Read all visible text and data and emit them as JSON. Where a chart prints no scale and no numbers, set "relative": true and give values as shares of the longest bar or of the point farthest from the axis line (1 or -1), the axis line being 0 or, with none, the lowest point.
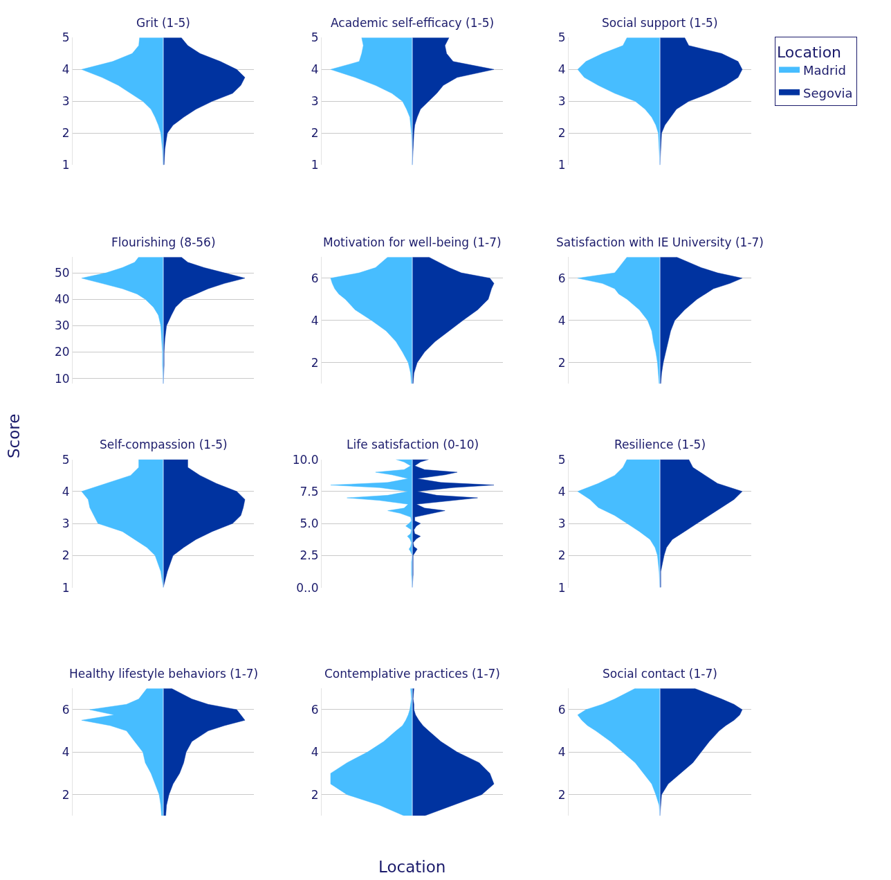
{
  "chart_data": [
    {
      "type": "area",
      "orientation": "horizontal",
      "relative": true,
      "title": "Grit (1-5)",
      "x": [
        1,
        1.5,
        2,
        2.25,
        2.5,
        2.75,
        3,
        3.25,
        3.5,
        3.75,
        4,
        4.25,
        4.5,
        4.75,
        5
      ],
      "ylim": [
        1,
        5
      ],
      "yticks": [
        1,
        2,
        3,
        4,
        5
      ],
      "grid": "y",
      "ref_lines": [
        {
          "axis": "x",
          "value": 0,
          "color": "#cfe3ff"
        }
      ],
      "legend": "right",
      "legend_title": "Location",
      "series": [
        {
          "name": "Madrid",
          "color": "#47bdff",
          "values": [
            0,
            -0.01,
            -0.03,
            -0.06,
            -0.1,
            -0.15,
            -0.25,
            -0.4,
            -0.55,
            -0.75,
            -1.0,
            -0.62,
            -0.38,
            -0.3,
            -0.29
          ]
        },
        {
          "name": "Segovia",
          "color": "#0033a0",
          "values": [
            0.01,
            0.02,
            0.05,
            0.12,
            0.25,
            0.4,
            0.6,
            0.85,
            0.95,
            1.0,
            0.9,
            0.7,
            0.45,
            0.3,
            0.22
          ]
        }
      ]
    },
    {
      "type": "area",
      "orientation": "horizontal",
      "relative": true,
      "title": "Academic self-efficacy (1-5)",
      "ref_lines": [
        {
          "axis": "x",
          "value": 0,
          "color": "#cfe3ff"
        }
      ],
      "x": [
        1,
        1.5,
        2,
        2.25,
        2.5,
        2.75,
        3,
        3.25,
        3.5,
        3.75,
        4,
        4.25,
        4.5,
        4.75,
        5
      ],
      "ylim": [
        1,
        5
      ],
      "yticks": [
        1,
        2,
        3,
        4,
        5
      ],
      "grid": "y",
      "series": [
        {
          "name": "Madrid",
          "color": "#47bdff",
          "values": [
            0,
            0,
            -0.01,
            -0.02,
            -0.03,
            -0.07,
            -0.12,
            -0.25,
            -0.45,
            -0.7,
            -1.0,
            -0.65,
            -0.62,
            -0.6,
            -0.62
          ]
        },
        {
          "name": "Segovia",
          "color": "#0033a0",
          "values": [
            0,
            0.01,
            0.02,
            0.03,
            0.06,
            0.1,
            0.2,
            0.3,
            0.38,
            0.55,
            1.0,
            0.5,
            0.42,
            0.4,
            0.45
          ]
        }
      ]
    },
    {
      "type": "area",
      "orientation": "horizontal",
      "relative": true,
      "title": "Social support (1-5)",
      "ref_lines": [
        {
          "axis": "x",
          "value": 0,
          "color": "#cfe3ff"
        }
      ],
      "x": [
        1,
        1.5,
        2,
        2.25,
        2.5,
        2.75,
        3,
        3.25,
        3.5,
        3.75,
        4,
        4.25,
        4.5,
        4.75,
        5
      ],
      "ylim": [
        1,
        5
      ],
      "yticks": [
        1,
        2,
        3,
        4,
        5
      ],
      "grid": "y",
      "series": [
        {
          "name": "Madrid",
          "color": "#47bdff",
          "values": [
            0,
            -0.01,
            -0.02,
            -0.05,
            -0.1,
            -0.18,
            -0.3,
            -0.55,
            -0.75,
            -0.92,
            -1.0,
            -0.9,
            -0.7,
            -0.45,
            -0.4
          ]
        },
        {
          "name": "Segovia",
          "color": "#0033a0",
          "values": [
            0,
            0.01,
            0.02,
            0.06,
            0.13,
            0.2,
            0.35,
            0.6,
            0.8,
            0.95,
            1.0,
            0.95,
            0.75,
            0.35,
            0.3
          ]
        }
      ]
    },
    {
      "type": "area",
      "orientation": "horizontal",
      "relative": true,
      "title": "Flourishing (8-56)",
      "ref_lines": [
        {
          "axis": "x",
          "value": 0,
          "color": "#cfe3ff"
        }
      ],
      "x": [
        8,
        15,
        20,
        25,
        30,
        34,
        37,
        40,
        42,
        44,
        46,
        48,
        50,
        52,
        54,
        56
      ],
      "ylim": [
        8,
        56
      ],
      "yticks": [
        10,
        20,
        30,
        40,
        50
      ],
      "grid": "y",
      "series": [
        {
          "name": "Madrid",
          "color": "#47bdff",
          "values": [
            0,
            -0.01,
            -0.01,
            -0.02,
            -0.03,
            -0.06,
            -0.12,
            -0.22,
            -0.32,
            -0.5,
            -0.75,
            -1.0,
            -0.7,
            -0.5,
            -0.35,
            -0.3
          ]
        },
        {
          "name": "Segovia",
          "color": "#0033a0",
          "values": [
            0,
            0.01,
            0.01,
            0.02,
            0.04,
            0.1,
            0.15,
            0.25,
            0.4,
            0.55,
            0.75,
            1.0,
            0.75,
            0.5,
            0.3,
            0.22
          ]
        }
      ]
    },
    {
      "type": "area",
      "orientation": "horizontal",
      "relative": true,
      "title": "Motivation for well-being (1-7)",
      "ref_lines": [
        {
          "axis": "x",
          "value": 0,
          "color": "#cfe3ff"
        }
      ],
      "x": [
        1,
        1.5,
        2,
        2.5,
        3,
        3.5,
        4,
        4.5,
        5,
        5.25,
        5.5,
        5.75,
        6,
        6.25,
        6.5,
        7
      ],
      "ylim": [
        1,
        7
      ],
      "yticks": [
        2,
        4,
        6
      ],
      "grid": "y",
      "series": [
        {
          "name": "Madrid",
          "color": "#47bdff",
          "values": [
            -0.01,
            -0.02,
            -0.05,
            -0.12,
            -0.2,
            -0.32,
            -0.5,
            -0.7,
            -0.82,
            -0.9,
            -0.95,
            -0.98,
            -1.0,
            -0.65,
            -0.45,
            -0.3
          ]
        },
        {
          "name": "Segovia",
          "color": "#0033a0",
          "values": [
            0.01,
            0.02,
            0.06,
            0.15,
            0.28,
            0.45,
            0.62,
            0.8,
            0.93,
            0.95,
            0.97,
            1.0,
            0.95,
            0.6,
            0.45,
            0.2
          ]
        }
      ]
    },
    {
      "type": "area",
      "orientation": "horizontal",
      "relative": true,
      "title": "Satisfaction with IE University (1-7)",
      "ref_lines": [
        {
          "axis": "x",
          "value": 0,
          "color": "#cfe3ff"
        }
      ],
      "x": [
        1,
        1.5,
        2,
        2.5,
        3,
        3.5,
        4,
        4.5,
        5,
        5.25,
        5.5,
        5.75,
        6,
        6.25,
        6.5,
        7
      ],
      "ylim": [
        1,
        7
      ],
      "yticks": [
        2,
        4,
        6
      ],
      "grid": "y",
      "series": [
        {
          "name": "Madrid",
          "color": "#47bdff",
          "values": [
            -0.01,
            -0.02,
            -0.03,
            -0.05,
            -0.08,
            -0.1,
            -0.15,
            -0.25,
            -0.4,
            -0.5,
            -0.55,
            -0.7,
            -1.0,
            -0.55,
            -0.5,
            -0.4
          ]
        },
        {
          "name": "Segovia",
          "color": "#0033a0",
          "values": [
            0.01,
            0.02,
            0.04,
            0.07,
            0.1,
            0.13,
            0.18,
            0.3,
            0.45,
            0.55,
            0.65,
            0.85,
            1.0,
            0.7,
            0.5,
            0.2
          ]
        }
      ]
    },
    {
      "type": "area",
      "orientation": "horizontal",
      "relative": true,
      "title": "Self-compassion (1-5)",
      "ref_lines": [
        {
          "axis": "x",
          "value": 0,
          "color": "#cfe3ff"
        }
      ],
      "ylabel": "Score",
      "x": [
        1,
        1.5,
        2,
        2.25,
        2.5,
        2.75,
        3,
        3.25,
        3.5,
        3.75,
        4,
        4.25,
        4.5,
        4.75,
        5
      ],
      "ylim": [
        1,
        5
      ],
      "yticks": [
        1,
        2,
        3,
        4,
        5
      ],
      "grid": "y",
      "series": [
        {
          "name": "Madrid",
          "color": "#47bdff",
          "values": [
            0,
            -0.03,
            -0.1,
            -0.2,
            -0.35,
            -0.5,
            -0.8,
            -0.85,
            -0.9,
            -0.92,
            -1.0,
            -0.7,
            -0.4,
            -0.3,
            -0.3
          ]
        },
        {
          "name": "Segovia",
          "color": "#0033a0",
          "values": [
            0,
            0.05,
            0.12,
            0.25,
            0.4,
            0.6,
            0.85,
            0.95,
            0.98,
            1.0,
            0.9,
            0.65,
            0.45,
            0.3,
            0.3
          ]
        }
      ]
    },
    {
      "type": "area",
      "orientation": "horizontal",
      "relative": true,
      "title": "Life satisfaction (0-10)",
      "ref_lines": [
        {
          "axis": "x",
          "value": 0,
          "color": "#cfe3ff"
        }
      ],
      "x": [
        0,
        1,
        2,
        2.5,
        2.8,
        3,
        3.2,
        3.5,
        3.8,
        4,
        4.2,
        4.5,
        4.8,
        5,
        5.2,
        5.5,
        5.8,
        6,
        6.2,
        6.5,
        6.8,
        7,
        7.2,
        7.5,
        7.8,
        8,
        8.2,
        8.5,
        8.8,
        9,
        9.2,
        9.5,
        9.8,
        10
      ],
      "ylim": [
        0,
        10
      ],
      "yticks": [
        {
          "value": 0,
          "label": "0..0"
        },
        2.5,
        {
          "value": 5,
          "label": "5.0"
        },
        7.5,
        {
          "value": 10,
          "label": "10.0"
        }
      ],
      "grid": "y",
      "series": [
        {
          "name": "Madrid",
          "color": "#47bdff",
          "values": [
            0,
            -0.01,
            -0.01,
            0,
            -0.02,
            -0.04,
            -0.02,
            -0.01,
            -0.03,
            -0.06,
            -0.02,
            -0.01,
            -0.08,
            -0.04,
            -0.01,
            -0.02,
            -0.15,
            -0.3,
            -0.1,
            -0.05,
            -0.4,
            -0.8,
            -0.3,
            -0.05,
            -0.4,
            -1.0,
            -0.3,
            -0.05,
            -0.25,
            -0.45,
            -0.1,
            -0.02,
            -0.1,
            -0.2
          ]
        },
        {
          "name": "Segovia",
          "color": "#0033a0",
          "values": [
            0,
            0.01,
            0.01,
            0.01,
            0.04,
            0.06,
            0.02,
            0.01,
            0.05,
            0.1,
            0.03,
            0.02,
            0.05,
            0.1,
            0.03,
            0.03,
            0.25,
            0.4,
            0.15,
            0.05,
            0.5,
            0.8,
            0.3,
            0.06,
            0.5,
            1.0,
            0.35,
            0.06,
            0.4,
            0.55,
            0.15,
            0.03,
            0.1,
            0.2
          ]
        }
      ]
    },
    {
      "type": "area",
      "orientation": "horizontal",
      "relative": true,
      "title": "Resilience (1-5)",
      "ref_lines": [
        {
          "axis": "x",
          "value": 0,
          "color": "#cfe3ff"
        }
      ],
      "x": [
        1,
        1.5,
        2,
        2.25,
        2.5,
        2.75,
        3,
        3.25,
        3.5,
        3.75,
        4,
        4.25,
        4.5,
        4.75,
        5
      ],
      "ylim": [
        1,
        5
      ],
      "yticks": [
        1,
        2,
        3,
        4,
        5
      ],
      "grid": "y",
      "series": [
        {
          "name": "Madrid",
          "color": "#47bdff",
          "values": [
            0,
            -0.01,
            -0.03,
            -0.06,
            -0.12,
            -0.25,
            -0.4,
            -0.55,
            -0.75,
            -0.85,
            -1.0,
            -0.75,
            -0.55,
            -0.45,
            -0.4
          ]
        },
        {
          "name": "Segovia",
          "color": "#0033a0",
          "values": [
            0.01,
            0.01,
            0.05,
            0.08,
            0.15,
            0.3,
            0.45,
            0.6,
            0.75,
            0.9,
            1.0,
            0.7,
            0.55,
            0.4,
            0.35
          ]
        }
      ]
    },
    {
      "type": "area",
      "orientation": "horizontal",
      "relative": true,
      "title": "Healthy lifestyle behaviors (1-7)",
      "ref_lines": [
        {
          "axis": "x",
          "value": 0,
          "color": "#cfe3ff"
        }
      ],
      "x": [
        1,
        1.5,
        2,
        2.5,
        3,
        3.5,
        4,
        4.5,
        5,
        5.25,
        5.5,
        5.75,
        6,
        6.25,
        6.5,
        7
      ],
      "ylim": [
        1,
        7
      ],
      "yticks": [
        2,
        4,
        6
      ],
      "grid": "y",
      "series": [
        {
          "name": "Madrid",
          "color": "#47bdff",
          "values": [
            -0.02,
            -0.03,
            -0.05,
            -0.1,
            -0.15,
            -0.22,
            -0.25,
            -0.35,
            -0.45,
            -0.65,
            -1.0,
            -0.6,
            -0.9,
            -0.45,
            -0.3,
            -0.2
          ]
        },
        {
          "name": "Segovia",
          "color": "#0033a0",
          "values": [
            0.03,
            0.04,
            0.07,
            0.12,
            0.2,
            0.25,
            0.28,
            0.35,
            0.55,
            0.75,
            1.0,
            0.95,
            0.9,
            0.55,
            0.35,
            0.1
          ]
        }
      ]
    },
    {
      "type": "area",
      "orientation": "horizontal",
      "relative": true,
      "title": "Contemplative practices (1-7)",
      "ref_lines": [
        {
          "axis": "x",
          "value": 0,
          "color": "#cfe3ff"
        }
      ],
      "xlabel": "Location",
      "x": [
        1,
        1.5,
        2,
        2.5,
        3,
        3.5,
        4,
        4.5,
        5,
        5.25,
        5.5,
        5.75,
        6,
        6.25,
        6.5,
        7
      ],
      "ylim": [
        1,
        7
      ],
      "yticks": [
        2,
        4,
        6
      ],
      "grid": "y",
      "series": [
        {
          "name": "Madrid",
          "color": "#47bdff",
          "values": [
            -0.1,
            -0.4,
            -0.8,
            -1.0,
            -1.0,
            -0.8,
            -0.55,
            -0.35,
            -0.2,
            -0.12,
            -0.08,
            -0.05,
            -0.03,
            -0.02,
            -0.01,
            -0.02
          ]
        },
        {
          "name": "Segovia",
          "color": "#0033a0",
          "values": [
            0.15,
            0.5,
            0.85,
            1.0,
            0.95,
            0.82,
            0.55,
            0.35,
            0.2,
            0.13,
            0.08,
            0.04,
            0.02,
            0.02,
            0.01,
            0.02
          ]
        }
      ]
    },
    {
      "type": "area",
      "orientation": "horizontal",
      "relative": true,
      "title": "Social contact (1-7)",
      "ref_lines": [
        {
          "axis": "x",
          "value": 0,
          "color": "#cfe3ff"
        }
      ],
      "x": [
        1,
        1.5,
        2,
        2.5,
        3,
        3.5,
        4,
        4.5,
        5,
        5.25,
        5.5,
        5.75,
        6,
        6.25,
        6.5,
        7
      ],
      "ylim": [
        1,
        7
      ],
      "yticks": [
        2,
        4,
        6
      ],
      "grid": "y",
      "series": [
        {
          "name": "Madrid",
          "color": "#47bdff",
          "values": [
            0,
            -0.01,
            -0.05,
            -0.1,
            -0.2,
            -0.3,
            -0.45,
            -0.6,
            -0.78,
            -0.88,
            -0.95,
            -1.0,
            -0.9,
            -0.7,
            -0.55,
            -0.3
          ]
        },
        {
          "name": "Segovia",
          "color": "#0033a0",
          "values": [
            0,
            0.01,
            0.02,
            0.1,
            0.25,
            0.4,
            0.5,
            0.6,
            0.72,
            0.8,
            0.9,
            0.97,
            1.0,
            0.9,
            0.75,
            0.42
          ]
        }
      ]
    }
  ]
}
